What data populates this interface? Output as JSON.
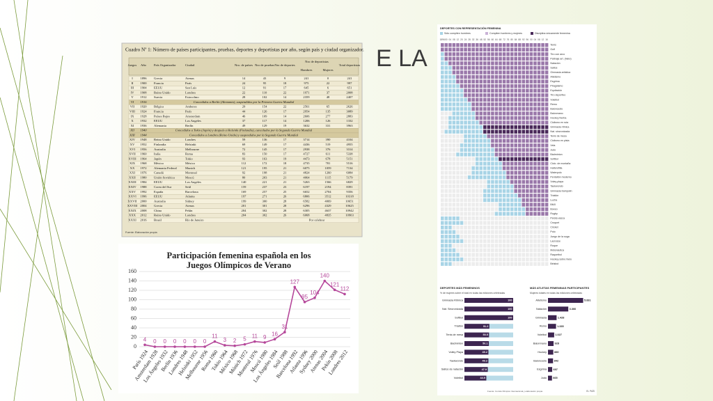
{
  "slide": {
    "title": "E LA"
  },
  "table": {
    "caption": "Cuadro Nº 1:  Número de países participantes, pruebas, deportes y deportistas por año, según país y ciudad organizador.",
    "header": [
      "Juegos",
      "Año",
      "País Organizador",
      "Ciudad",
      "Nro. de países",
      "Nro de pruebas",
      "Nro de deportes",
      "Nro de deportistas",
      "Total deportistas"
    ],
    "subheader": [
      "Hombres",
      "Mujeres"
    ],
    "rows": [
      [
        "I",
        1896,
        "Grecia",
        "Atenas",
        14,
        43,
        9,
        241,
        0,
        241
      ],
      [
        "II",
        1900,
        "Francia",
        "París",
        24,
        95,
        18,
        975,
        22,
        997
      ],
      [
        "III",
        1904,
        "EEUU",
        "San Luis",
        12,
        91,
        17,
        645,
        6,
        651
      ],
      [
        "IV",
        1908,
        "Reino Unido",
        "Londres",
        22,
        110,
        22,
        1971,
        37,
        2008
      ],
      [
        "V",
        1912,
        "Suecia",
        "Estocolmo",
        28,
        102,
        14,
        2359,
        48,
        2407
      ],
      [
        "VI",
        1916,
        "Concedidos a Berlín (Alemania), suspendidos por la Primera Guerra Mundial"
      ],
      [
        "VII",
        1920,
        "Bélgica",
        "Amberes",
        29,
        154,
        22,
        2561,
        65,
        2626
      ],
      [
        "VIII",
        1924,
        "Francia",
        "París",
        44,
        126,
        17,
        2954,
        135,
        3089
      ],
      [
        "IX",
        1928,
        "Países Bajos",
        "Amsterdam",
        46,
        109,
        14,
        2606,
        277,
        2883
      ],
      [
        "X",
        1932,
        "EEUU",
        "Los Angeles",
        37,
        117,
        14,
        1206,
        126,
        1332
      ],
      [
        "XI",
        1936,
        "Alemania",
        "Berlín",
        49,
        129,
        19,
        3632,
        331,
        3963
      ],
      [
        "XII",
        1940,
        "Concedidos a Tokio (Japón) y después a Helsinki (Finlandia), cancelados por la Segunda Guerra Mundial"
      ],
      [
        "XIII",
        1944,
        "Concedidos a Londres (Reino Unido) y suspendidos por la Segunda Guerra Mundial"
      ],
      [
        "XIV",
        1948,
        "Reino Unido",
        "Londres",
        59,
        136,
        17,
        3714,
        390,
        4104
      ],
      [
        "XV",
        1952,
        "Finlandia",
        "Helsinki",
        69,
        149,
        17,
        4436,
        519,
        4955
      ],
      [
        "XVI",
        1956,
        "Australia",
        "Melbourne",
        72,
        145,
        17,
        2938,
        376,
        3314
      ],
      [
        "XVII",
        1960,
        "Italia",
        "Roma",
        83,
        150,
        17,
        4727,
        611,
        5338
      ],
      [
        "XVIII",
        1964,
        "Japón",
        "Tokio",
        93,
        163,
        19,
        4473,
        678,
        5151
      ],
      [
        "XIX",
        1968,
        "México",
        "México",
        112,
        172,
        18,
        4735,
        781,
        5516
      ],
      [
        "XX",
        1972,
        "Alemania Federal",
        "Munich",
        121,
        195,
        21,
        6075,
        1059,
        7134
      ],
      [
        "XXI",
        1976,
        "Canadá",
        "Montreal",
        92,
        198,
        21,
        4824,
        1260,
        6084
      ],
      [
        "XXII",
        1980,
        "Unión Soviética",
        "Moscú",
        80,
        203,
        21,
        4064,
        1115,
        5179
      ],
      [
        "XXIII",
        1984,
        "EEUU",
        "Los Angeles",
        140,
        221,
        21,
        5263,
        1566,
        6829
      ],
      [
        "XXIV",
        1988,
        "Corea del Sur",
        "Seúl",
        159,
        237,
        23,
        6197,
        2194,
        8391
      ],
      [
        "XXV",
        1992,
        "España",
        "Barcelona",
        169,
        257,
        25,
        6652,
        2704,
        9356
      ],
      [
        "XXVI",
        1996,
        "EEUU",
        "Atlanta",
        197,
        271,
        26,
        6806,
        3512,
        10318
      ],
      [
        "XXVII",
        2000,
        "Australia",
        "Sidney",
        199,
        300,
        28,
        6582,
        4069,
        10651
      ],
      [
        "XXVIII",
        2004,
        "Grecia",
        "Atenas",
        201,
        301,
        28,
        6296,
        4329,
        10625
      ],
      [
        "XXIX",
        2008,
        "China",
        "Pekín",
        204,
        302,
        28,
        6305,
        4637,
        10942
      ],
      [
        "XXX",
        2012,
        "Reino Unido",
        "Londres",
        204,
        302,
        26,
        6068,
        4835,
        10903
      ],
      [
        "XXXI",
        2016,
        "Brasil",
        "Río de Janeiro",
        "Por celebrar"
      ]
    ],
    "source": "Fuente: Elaboración propia"
  },
  "infographic": {
    "heading": "DEPORTES CON REPRESENTACIÓN FEMENINA",
    "legend": [
      "Sólo compiten hombres",
      "Compiten hombres y mujeres",
      "Disciplina únicamente femenina"
    ],
    "years": [
      "1896",
      "00",
      "04",
      "08",
      "12",
      "20",
      "24",
      "28",
      "32",
      "36",
      "48",
      "52",
      "56",
      "60",
      "64",
      "68",
      "72",
      "76",
      "80",
      "84",
      "88",
      "92",
      "96",
      "00",
      "04",
      "08",
      "12",
      "16"
    ],
    "sports": [
      "Tenis",
      "Golf",
      "Tiro con arco",
      "Patinaje art. (hielo)",
      "Natación",
      "Saltos",
      "Gimnasia artística",
      "Atletismo",
      "Esgrima",
      "Piragüismo",
      "Equitación",
      "Tiro deportivo",
      "Voleibol",
      "Remo",
      "Baloncesto",
      "Balonmano",
      "Hockey hierba",
      "Ciclismo en ruta",
      "Gimnasia rítmica",
      "Nat. sincronizada",
      "Tenis de mesa",
      "Ciclismo en pista",
      "Vela",
      "Judo",
      "Bádminton",
      "Softbol",
      "Ciclo. de montaña",
      "Halterofilia",
      "Waterpolo",
      "Pentatlón moderno",
      "Voley-playa",
      "Taekwondo",
      "Gimnasia trampolín",
      "Triatlón",
      "Lucha",
      "BMX",
      "Boxeo",
      "Rugby",
      "Pelota vasca",
      "Croquet",
      "Cricket",
      "Polo",
      "Juego de la soga",
      "Lacrosse",
      "Roque",
      "Motonáutica",
      "Raquetbol",
      "Hockey sobre hielo",
      "Béisbol"
    ],
    "source": "Fuente: Comité Olímpico Internacional y elaboración propia",
    "credit": "EL PAÍS"
  },
  "chart_data": [
    {
      "type": "line",
      "title": "Participación femenina española en los Juegos Olímpicos de Verano",
      "color": "#b5479a",
      "categories": [
        "París 1924",
        "Amsterdam 1928",
        "Los Ángeles 1932",
        "Berlín 1936",
        "Londres 1948",
        "Helsinki 1952",
        "Melbourne 1956",
        "Roma 1960",
        "Tokio 1964",
        "México 1968",
        "Múnich 1972",
        "Montreal 1976",
        "Moscú 1980",
        "Los Ángeles 1984",
        "Seúl 1988",
        "Barcelona 1992",
        "Atlanta 1996",
        "Sydney 2000",
        "Atenas 2004",
        "Pekín 2008",
        "Londres 2012"
      ],
      "values": [
        4,
        0,
        0,
        0,
        0,
        0,
        0,
        11,
        3,
        2,
        5,
        11,
        9,
        16,
        31,
        127,
        95,
        104,
        140,
        121,
        112
      ],
      "ylim": [
        0,
        160
      ],
      "yticks": [
        0,
        20,
        40,
        60,
        80,
        100,
        120,
        140,
        160
      ],
      "grid": true
    },
    {
      "type": "hbar",
      "title": "DEPORTES MÁS FEMENINOS",
      "subtitle": "% de mujeres sobre el total en todas las ediciones celebradas",
      "color": "#3d2550",
      "track": "#b9dbe8",
      "categories": [
        "Gimnasia Rítmica",
        "Nat. Sincronizada",
        "Softbol",
        "Triatlón",
        "Tenis de mesa",
        "Bádminton",
        "Volley Playa",
        "Taekwondo",
        "Saltos de natación",
        "Voleibol"
      ],
      "values": [
        100,
        100,
        100,
        51.2,
        50.5,
        50.1,
        49.2,
        49.2,
        47.9,
        44.9
      ],
      "xlim": [
        0,
        100
      ]
    },
    {
      "type": "hbar",
      "title": "MÁS ATLETAS FEMENINAS PARTICIPANTES",
      "subtitle": "Mujeres totales en todas las ediciones celebradas",
      "color": "#3d2550",
      "categories": [
        "Atletismo",
        "Natación",
        "Gimnasia",
        "Remo",
        "Voleibol",
        "Balonmano",
        "Hockey",
        "Baloncesto",
        "Esgrima",
        "Judo"
      ],
      "values": [
        5831,
        3366,
        1428,
        1335,
        1027,
        928,
        880,
        842,
        697,
        665
      ],
      "value_labels": [
        "5.831",
        "3.366",
        "1.428",
        "1.335",
        "1.027",
        "928",
        "880",
        "842",
        "697",
        "665"
      ],
      "xlim": [
        0,
        6000
      ]
    }
  ]
}
